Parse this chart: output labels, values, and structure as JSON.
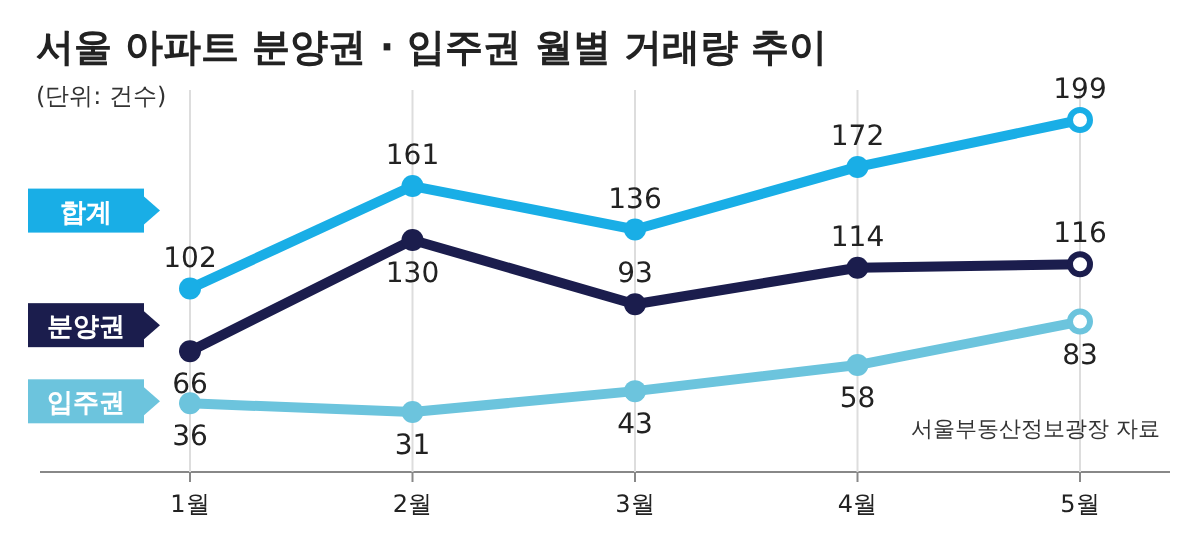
{
  "chart_data": {
    "type": "line",
    "title": "서울 아파트 분양권 · 입주권 월별 거래량 추이",
    "subtitle": "(단위: 건수)",
    "categories": [
      "1월",
      "2월",
      "3월",
      "4월",
      "5월"
    ],
    "series": [
      {
        "name": "합계",
        "color": "#19aee6",
        "values": [
          102,
          161,
          136,
          172,
          199
        ]
      },
      {
        "name": "분양권",
        "color": "#1b1d4d",
        "values": [
          66,
          130,
          93,
          114,
          116
        ]
      },
      {
        "name": "입주권",
        "color": "#6cc4dd",
        "values": [
          36,
          31,
          43,
          58,
          83
        ]
      }
    ],
    "data_labels": true,
    "marker": "circle",
    "grid": "x",
    "legend": "left",
    "annotations": [
      "서울부동산정보광장 자료"
    ]
  }
}
